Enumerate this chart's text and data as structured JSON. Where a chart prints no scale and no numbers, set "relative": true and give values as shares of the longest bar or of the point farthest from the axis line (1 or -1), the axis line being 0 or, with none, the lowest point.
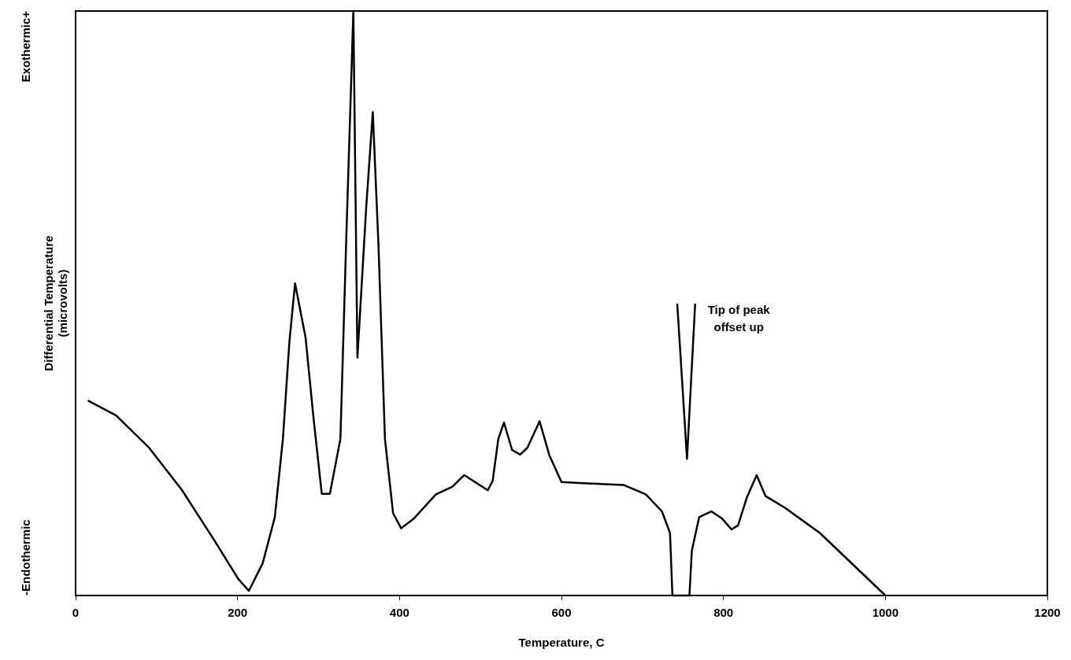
{
  "chart_data": {
    "type": "line",
    "xlabel": "Temperature, C",
    "ylabel": "Differential Temperature\n(microvolts)",
    "relative": true,
    "xlim": [
      0,
      1200
    ],
    "xticks": [
      0,
      200,
      400,
      600,
      800,
      1000,
      1200
    ],
    "grid": false,
    "legend": false,
    "marker": "none",
    "line_style": "solid",
    "annotations": [
      "Exothermic+",
      "-Endothermic",
      {
        "text": "Tip of peak offset up",
        "x": 765,
        "y": 0.498
      }
    ],
    "series": [
      {
        "color": "#000000",
        "x": [
          16,
          50,
          90,
          131,
          171,
          201,
          214,
          231,
          246,
          256,
          264,
          271,
          284,
          294,
          304,
          314,
          327,
          334,
          343,
          348,
          359,
          367,
          374,
          382,
          392,
          402,
          418,
          445,
          465,
          480,
          509,
          515,
          522,
          529,
          539,
          549,
          558,
          573,
          585,
          600,
          627,
          677,
          704,
          724,
          734,
          737,
          758,
          761,
          770,
          785,
          798,
          810,
          818,
          829,
          841,
          852,
          876,
          919,
          1000
        ],
        "values": [
          0.333,
          0.308,
          0.254,
          0.181,
          0.095,
          0.028,
          0.008,
          0.055,
          0.134,
          0.268,
          0.434,
          0.534,
          0.441,
          0.301,
          0.174,
          0.174,
          0.268,
          0.6,
          1.0,
          0.407,
          0.667,
          0.827,
          0.6,
          0.268,
          0.141,
          0.115,
          0.132,
          0.173,
          0.186,
          0.206,
          0.18,
          0.196,
          0.268,
          0.296,
          0.249,
          0.241,
          0.253,
          0.298,
          0.24,
          0.194,
          0.192,
          0.189,
          0.173,
          0.144,
          0.107,
          0,
          0,
          0.077,
          0.134,
          0.144,
          0.132,
          0.113,
          0.12,
          0.168,
          0.206,
          0.17,
          0.15,
          0.107,
          0
        ]
      },
      {
        "color": "#000000",
        "x": [
          743,
          755,
          765
        ],
        "values": [
          0.498,
          0.234,
          0.498
        ]
      }
    ]
  }
}
